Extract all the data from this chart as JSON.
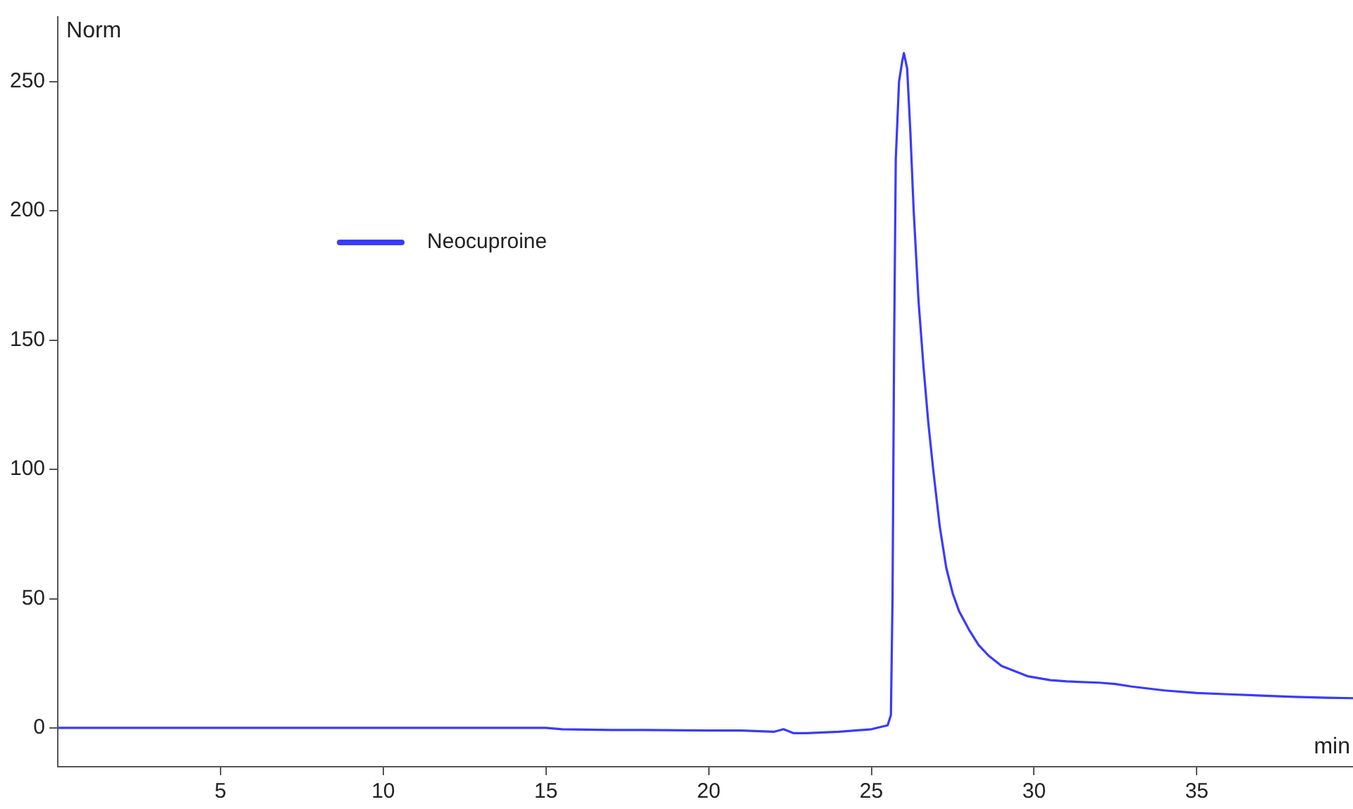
{
  "chart_data": {
    "type": "line",
    "xlabel": "min",
    "ylabel": "Norm",
    "series": [
      {
        "name": "Neocuproine",
        "color": "#3a3aff",
        "x": [
          0,
          5,
          10,
          15,
          15.5,
          17,
          18,
          20,
          21,
          22,
          22.3,
          22.6,
          23,
          24,
          25,
          25.5,
          25.6,
          25.65,
          25.7,
          25.75,
          25.85,
          25.95,
          26.0,
          26.1,
          26.2,
          26.3,
          26.45,
          26.6,
          26.75,
          26.9,
          27.1,
          27.3,
          27.5,
          27.7,
          28.0,
          28.3,
          28.6,
          29.0,
          29.4,
          29.8,
          30.5,
          31,
          32,
          32.5,
          33,
          34,
          35,
          36,
          37,
          38,
          39,
          39.8
        ],
        "values": [
          0,
          0,
          0,
          0,
          -0.5,
          -0.8,
          -0.8,
          -1,
          -1,
          -1.5,
          -0.5,
          -2,
          -2,
          -1.5,
          -0.5,
          1,
          5,
          50,
          150,
          220,
          250,
          258,
          261,
          255,
          230,
          200,
          165,
          140,
          118,
          100,
          78,
          62,
          52,
          45,
          38,
          32,
          28,
          24,
          22,
          20,
          18.5,
          18,
          17.5,
          17,
          16,
          14.5,
          13.5,
          13,
          12.5,
          12,
          11.7,
          11.5
        ]
      }
    ],
    "xlim": [
      0,
      39.8
    ],
    "ylim": [
      -15,
      275
    ],
    "xticks": [
      5,
      10,
      15,
      20,
      25,
      30,
      35
    ],
    "yticks": [
      0,
      50,
      100,
      150,
      200,
      250
    ],
    "grid": false,
    "legend": "top left",
    "marker": "none",
    "line_style": "solid"
  }
}
